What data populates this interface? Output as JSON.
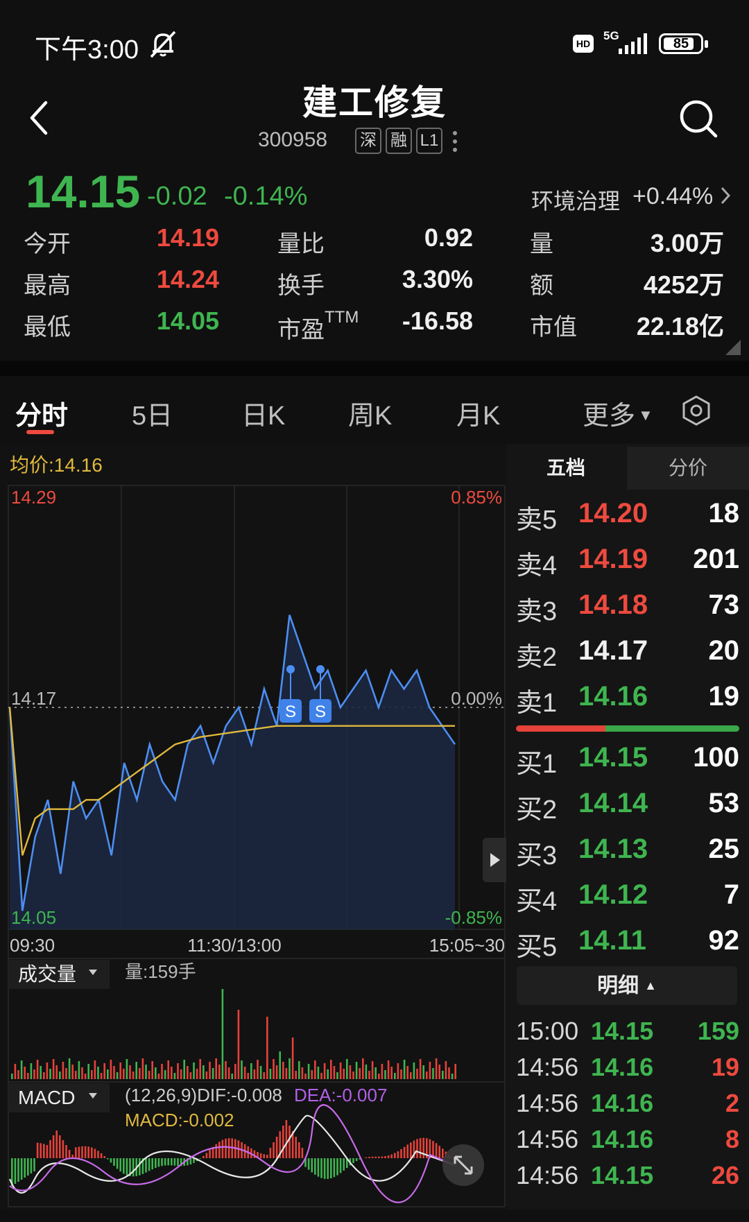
{
  "status_bar": {
    "time": "下午3:00",
    "hd": "HD",
    "network": "5G",
    "battery": "85",
    "battery_level": 0.85
  },
  "header": {
    "title": "建工修复",
    "code": "300958",
    "tags": [
      "深",
      "融",
      "L1"
    ]
  },
  "quote": {
    "price": "14.15",
    "change": "-0.02",
    "change_pct": "-0.14%",
    "sector_name": "环境治理",
    "sector_change": "+0.44%"
  },
  "stats": {
    "open_label": "今开",
    "open": "14.19",
    "high_label": "最高",
    "high": "14.24",
    "low_label": "最低",
    "low": "14.05",
    "vol_ratio_label": "量比",
    "vol_ratio": "0.92",
    "turnover_label": "换手",
    "turnover": "3.30%",
    "pe_label": "市盈",
    "pe_sup": "TTM",
    "pe": "-16.58",
    "volume_label": "量",
    "volume": "3.00万",
    "amount_label": "额",
    "amount": "4252万",
    "mktcap_label": "市值",
    "mktcap": "22.18亿"
  },
  "tabs": [
    "分时",
    "5日",
    "日K",
    "周K",
    "月K",
    "更多"
  ],
  "chart": {
    "avg_label": "均价:14.16",
    "y_top": "14.29",
    "y_mid": "14.17",
    "y_bottom": "14.05",
    "pct_top": "0.85%",
    "pct_mid": "0.00%",
    "pct_bottom": "-0.85%",
    "x_labels": [
      "09:30",
      "11:30/13:00",
      "15:05~30"
    ],
    "signal_markers": [
      "S",
      "S"
    ],
    "volume_selector": "成交量",
    "volume_text": "量:159手",
    "macd_selector": "MACD",
    "macd_params": "(12,26,9)DIF:-0.008",
    "macd_dea": "DEA:-0.007",
    "macd_value": "MACD:-0.002"
  },
  "chart_data": {
    "type": "line",
    "x_range": [
      "09:30",
      "15:00"
    ],
    "ylim": [
      14.05,
      14.29
    ],
    "prev_close": 14.17,
    "series": [
      {
        "values": [
          14.17,
          14.06,
          14.1,
          14.12,
          14.08,
          14.13,
          14.11,
          14.12,
          14.09,
          14.14,
          14.12,
          14.15,
          14.13,
          14.12,
          14.15,
          14.16,
          14.14,
          14.16,
          14.17,
          14.15,
          14.18,
          14.16,
          14.22,
          14.2,
          14.18,
          14.19,
          14.17,
          14.18,
          14.19,
          14.17,
          14.19,
          14.18,
          14.19,
          14.17,
          14.16,
          14.15
        ]
      },
      {
        "values": [
          14.17,
          14.09,
          14.11,
          14.115,
          14.115,
          14.115,
          14.12,
          14.12,
          14.125,
          14.13,
          14.135,
          14.14,
          14.145,
          14.15,
          14.152,
          14.154,
          14.155,
          14.156,
          14.157,
          14.158,
          14.159,
          14.16,
          14.16,
          14.16,
          14.16,
          14.16,
          14.16,
          14.16,
          14.16,
          14.16,
          14.16,
          14.16,
          14.16,
          14.16,
          14.16,
          14.16
        ]
      }
    ]
  },
  "order_book": {
    "tab_active": "五档",
    "tab_other": "分价",
    "asks": [
      {
        "label": "卖5",
        "price": "14.20",
        "vol": "18",
        "color": "#ee4a3f"
      },
      {
        "label": "卖4",
        "price": "14.19",
        "vol": "201",
        "color": "#ee4a3f"
      },
      {
        "label": "卖3",
        "price": "14.18",
        "vol": "73",
        "color": "#ee4a3f"
      },
      {
        "label": "卖2",
        "price": "14.17",
        "vol": "20",
        "color": "#f0f0f0"
      },
      {
        "label": "卖1",
        "price": "14.16",
        "vol": "19",
        "color": "#3fb550"
      }
    ],
    "bids": [
      {
        "label": "买1",
        "price": "14.15",
        "vol": "100",
        "color": "#3fb550"
      },
      {
        "label": "买2",
        "price": "14.14",
        "vol": "53",
        "color": "#3fb550"
      },
      {
        "label": "买3",
        "price": "14.13",
        "vol": "25",
        "color": "#3fb550"
      },
      {
        "label": "买4",
        "price": "14.12",
        "vol": "7",
        "color": "#3fb550"
      },
      {
        "label": "买5",
        "price": "14.11",
        "vol": "92",
        "color": "#3fb550"
      }
    ],
    "buy_sell_ratio": 0.4,
    "detail_label": "明细"
  },
  "ticks": [
    {
      "time": "15:00",
      "price": "14.15",
      "vol": "159",
      "color": "#3fb550"
    },
    {
      "time": "14:56",
      "price": "14.16",
      "vol": "19",
      "color": "#ee4a3f"
    },
    {
      "time": "14:56",
      "price": "14.16",
      "vol": "2",
      "color": "#ee4a3f"
    },
    {
      "time": "14:56",
      "price": "14.16",
      "vol": "8",
      "color": "#ee4a3f"
    },
    {
      "time": "14:56",
      "price": "14.15",
      "vol": "26",
      "color": "#ee4a3f"
    }
  ]
}
